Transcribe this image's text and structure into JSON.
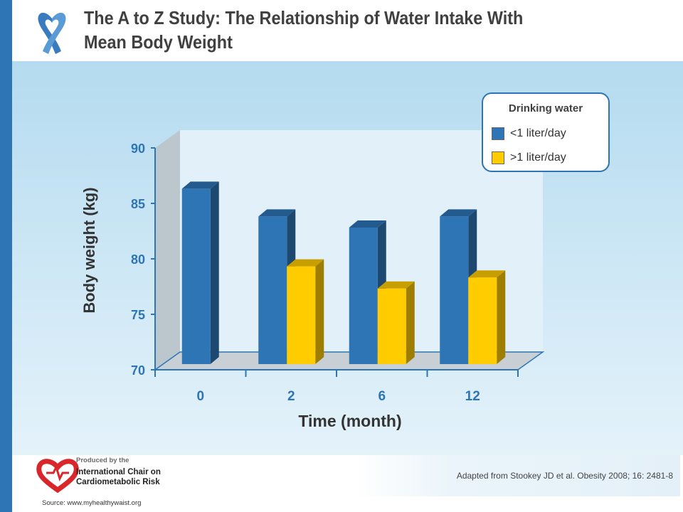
{
  "slide": {
    "title_line1": "The A to Z Study: The Relationship of Water Intake With",
    "title_line2": "Mean Body Weight",
    "ribbon_icon": "awareness-ribbon-icon",
    "logo_icon": "heart-logo-icon",
    "accent_color": "#2e75b6"
  },
  "legend": {
    "title": "Drinking water",
    "items": [
      {
        "label": "<1 liter/day",
        "color": "#2e75b6"
      },
      {
        "label": ">1 liter/day",
        "color": "#ffcc00"
      }
    ]
  },
  "chart_data": {
    "type": "bar",
    "categories": [
      "0",
      "2",
      "6",
      "12"
    ],
    "series": [
      {
        "values": [
          86,
          83.5,
          82.5,
          83.5
        ],
        "color": "#2e75b6"
      },
      {
        "values": [
          null,
          79,
          77,
          78
        ],
        "color": "#ffcc00"
      }
    ],
    "title": "",
    "xlabel": "Time (month)",
    "ylabel": "Body weight (kg)",
    "ylim": [
      70,
      90
    ],
    "yticks": [
      "70",
      "75",
      "80",
      "85",
      "90"
    ],
    "grid": false,
    "legend_position": "top-right",
    "style": "3d"
  },
  "footer": {
    "produced_by": "Produced by the",
    "chair_line1": "International Chair on",
    "chair_line2": "Cardiometabolic Risk",
    "source": "Source: www.myhealthywaist.org",
    "reference": "Adapted from Stookey JD et al. Obesity 2008; 16: 2481-8"
  }
}
